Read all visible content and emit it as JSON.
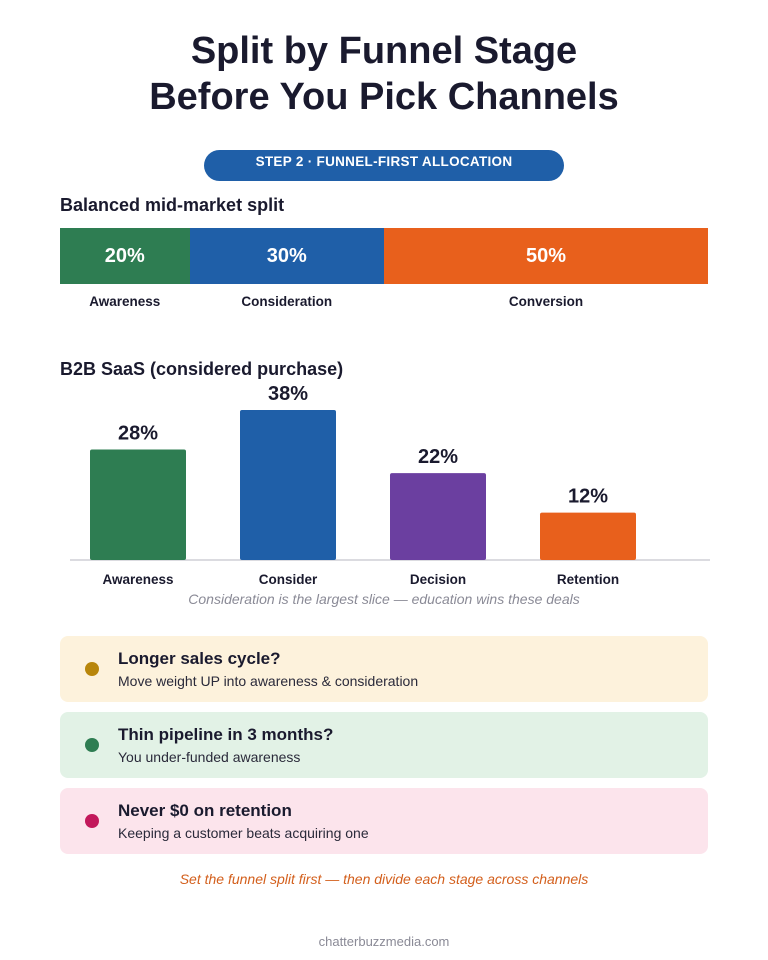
{
  "title": {
    "line1": "Split by Funnel Stage",
    "line2": "Before You Pick Channels"
  },
  "badge": "STEP 2 · FUNNEL-FIRST ALLOCATION",
  "chart_data": [
    {
      "type": "bar",
      "title": "Balanced mid-market split",
      "orientation": "horizontal-stacked",
      "categories": [
        "Awareness",
        "Consideration",
        "Conversion"
      ],
      "values": [
        20,
        30,
        50
      ],
      "value_labels": [
        "20%",
        "30%",
        "50%"
      ],
      "colors": [
        "#2e7d52",
        "#1f5fa8",
        "#e8601c"
      ]
    },
    {
      "type": "bar",
      "title": "B2B SaaS (considered purchase)",
      "categories": [
        "Awareness",
        "Consider",
        "Decision",
        "Retention"
      ],
      "values": [
        28,
        38,
        22,
        12
      ],
      "value_labels": [
        "28%",
        "38%",
        "22%",
        "12%"
      ],
      "colors": [
        "#2e7d52",
        "#1f5fa8",
        "#6b3fa0",
        "#e8601c"
      ],
      "annotation": "Consideration is the largest slice — education wins these deals",
      "grid": false
    }
  ],
  "tips": [
    {
      "title": "Longer sales cycle?",
      "text": "Move weight UP into awareness & consideration",
      "bg": "#fdf2dc",
      "dot": "#b8860b"
    },
    {
      "title": "Thin pipeline in 3 months?",
      "text": "You under-funded awareness",
      "bg": "#e2f2e6",
      "dot": "#2e7d52"
    },
    {
      "title": "Never $0 on retention",
      "text": "Keeping a customer beats acquiring one",
      "bg": "#fce4ec",
      "dot": "#c2185b"
    }
  ],
  "footer": {
    "note": "Set the funnel split first — then divide each stage across channels",
    "site": "chatterbuzzmedia.com"
  }
}
